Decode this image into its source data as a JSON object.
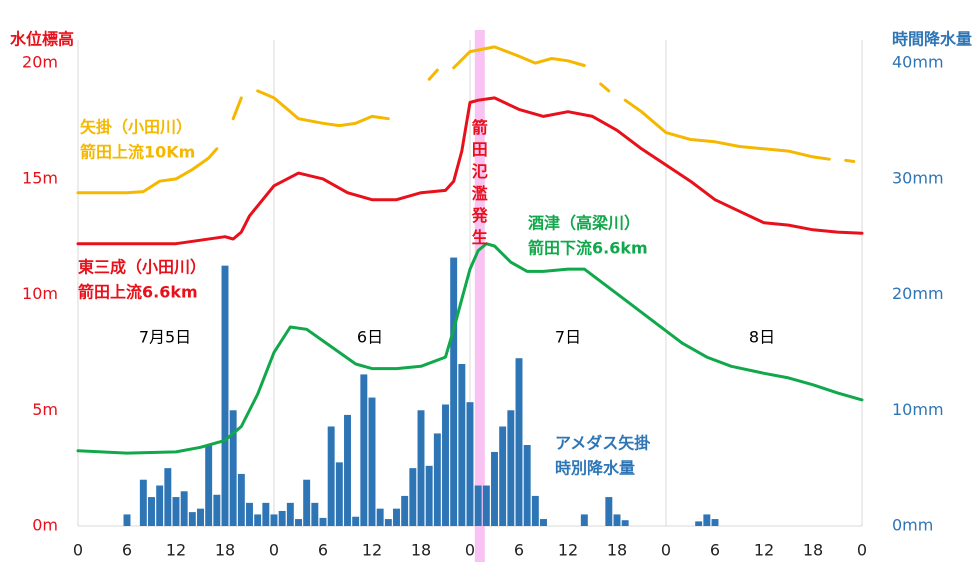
{
  "chart_data": {
    "type": "line",
    "ylabel": "水位標高",
    "y2label": "時間降水量",
    "annotation": {
      "text": "箭田氾濫発生",
      "x": 49.2
    },
    "day_labels": [
      "7月5日",
      "6日",
      "7日",
      "8日"
    ],
    "xlim": [
      0,
      96
    ],
    "xticks": [
      {
        "value": 0,
        "label": "0"
      },
      {
        "value": 6,
        "label": "6"
      },
      {
        "value": 12,
        "label": "12"
      },
      {
        "value": 18,
        "label": "18"
      },
      {
        "value": 24,
        "label": "0"
      },
      {
        "value": 30,
        "label": "6"
      },
      {
        "value": 36,
        "label": "12"
      },
      {
        "value": 42,
        "label": "18"
      },
      {
        "value": 48,
        "label": "0"
      },
      {
        "value": 54,
        "label": "6"
      },
      {
        "value": 60,
        "label": "12"
      },
      {
        "value": 66,
        "label": "18"
      },
      {
        "value": 72,
        "label": "0"
      },
      {
        "value": 78,
        "label": "6"
      },
      {
        "value": 84,
        "label": "12"
      },
      {
        "value": 90,
        "label": "18"
      },
      {
        "value": 96,
        "label": "0"
      }
    ],
    "xgrid": [
      0,
      24,
      48,
      72,
      96
    ],
    "ylim": [
      0,
      21
    ],
    "yticks": [
      {
        "value": 0,
        "label": "0m"
      },
      {
        "value": 5,
        "label": "5m"
      },
      {
        "value": 10,
        "label": "10m"
      },
      {
        "value": 15,
        "label": "15m"
      },
      {
        "value": 20,
        "label": "20m"
      }
    ],
    "y2lim": [
      0,
      42
    ],
    "y2ticks": [
      {
        "value": 0,
        "label": "0mm"
      },
      {
        "value": 10,
        "label": "10mm"
      },
      {
        "value": 20,
        "label": "20mm"
      },
      {
        "value": 30,
        "label": "30mm"
      },
      {
        "value": 40,
        "label": "40mm"
      }
    ],
    "series": [
      {
        "name": [
          "アメダス矢掛",
          "時別降水量"
        ],
        "type": "bar",
        "axis": "y2",
        "color": "#2e75b6",
        "x": [
          6,
          8,
          9,
          10,
          11,
          12,
          13,
          14,
          15,
          16,
          17,
          18,
          19,
          20,
          21,
          22,
          23,
          24,
          25,
          26,
          27,
          28,
          29,
          30,
          31,
          32,
          33,
          34,
          35,
          36,
          37,
          38,
          39,
          40,
          41,
          42,
          43,
          44,
          45,
          46,
          47,
          48,
          49,
          50,
          51,
          52,
          53,
          54,
          55,
          56,
          57,
          62,
          65,
          66,
          67,
          76,
          77,
          78
        ],
        "values": [
          1,
          4,
          2.5,
          3.5,
          5,
          2.5,
          3,
          1.2,
          1.5,
          7,
          2.7,
          22.5,
          10,
          4.5,
          2,
          1,
          2,
          1,
          1.3,
          2,
          0.6,
          4,
          2,
          0.7,
          8.6,
          5.5,
          9.6,
          0.8,
          13.1,
          11.1,
          1.5,
          0.6,
          1.5,
          2.6,
          5,
          10,
          5.2,
          8,
          10.5,
          23.2,
          14,
          10.7,
          3.5,
          3.5,
          6.4,
          8.6,
          10,
          14.5,
          7,
          2.6,
          0.6,
          1,
          2.5,
          1,
          0.5,
          0.4,
          1,
          0.6
        ]
      },
      {
        "name": [
          "矢掛（小田川）",
          "箭田上流10Km"
        ],
        "type": "line",
        "color": "#f5b800",
        "x": [
          0,
          6,
          8,
          10,
          12,
          14,
          16,
          17,
          18,
          19,
          20,
          21,
          22,
          24,
          27,
          30,
          32,
          34,
          36,
          38,
          39,
          43,
          44,
          45,
          46,
          48,
          51,
          54,
          56,
          58,
          60,
          62,
          63,
          64,
          65,
          66,
          67,
          69,
          72,
          75,
          78,
          81,
          84,
          87,
          90,
          92,
          93,
          94,
          95
        ],
        "values": [
          14.4,
          14.4,
          14.45,
          14.9,
          15.0,
          15.4,
          15.9,
          16.3,
          null,
          17.6,
          18.5,
          null,
          18.8,
          18.5,
          17.6,
          17.4,
          17.3,
          17.4,
          17.7,
          17.6,
          null,
          19.3,
          19.7,
          null,
          19.8,
          20.5,
          20.7,
          20.3,
          20.0,
          20.2,
          20.1,
          19.9,
          null,
          19.1,
          18.8,
          null,
          18.4,
          17.9,
          17.0,
          16.7,
          16.6,
          16.4,
          16.3,
          16.2,
          15.95,
          15.85,
          null,
          15.8,
          15.75
        ]
      },
      {
        "name": [
          "東三成（小田川）",
          "箭田上流6.6km"
        ],
        "type": "line",
        "color": "#e8101a",
        "x": [
          0,
          6,
          12,
          15,
          18,
          19,
          20,
          21,
          24,
          27,
          30,
          33,
          36,
          39,
          42,
          45,
          46,
          47,
          48,
          49,
          51,
          54,
          57,
          60,
          63,
          66,
          69,
          72,
          75,
          78,
          81,
          84,
          87,
          90,
          93,
          96
        ],
        "values": [
          12.2,
          12.2,
          12.2,
          12.35,
          12.5,
          12.4,
          12.7,
          13.4,
          14.7,
          15.25,
          15.0,
          14.4,
          14.1,
          14.1,
          14.4,
          14.5,
          14.9,
          16.2,
          18.3,
          18.4,
          18.5,
          18.0,
          17.7,
          17.9,
          17.7,
          17.1,
          16.3,
          15.6,
          14.9,
          14.1,
          13.6,
          13.1,
          13.0,
          12.8,
          12.7,
          12.65
        ]
      },
      {
        "name": [
          "酒津（高梁川）",
          "箭田下流6.6km"
        ],
        "type": "line",
        "color": "#10a84a",
        "x": [
          0,
          6,
          12,
          15,
          18,
          20,
          22,
          24,
          26,
          28,
          30,
          32,
          34,
          36,
          39,
          42,
          45,
          46,
          47,
          48,
          49,
          50,
          51,
          53,
          55,
          57,
          60,
          62,
          65,
          68,
          71,
          74,
          77,
          80,
          84,
          87,
          90,
          93,
          96
        ],
        "values": [
          3.25,
          3.15,
          3.2,
          3.4,
          3.7,
          4.3,
          5.7,
          7.5,
          8.6,
          8.5,
          8.0,
          7.5,
          7.0,
          6.8,
          6.8,
          6.9,
          7.3,
          8.5,
          9.8,
          11.1,
          11.9,
          12.2,
          12.1,
          11.4,
          11.0,
          11.0,
          11.1,
          11.1,
          10.3,
          9.5,
          8.7,
          7.9,
          7.3,
          6.9,
          6.6,
          6.4,
          6.1,
          5.75,
          5.45
        ]
      }
    ]
  }
}
